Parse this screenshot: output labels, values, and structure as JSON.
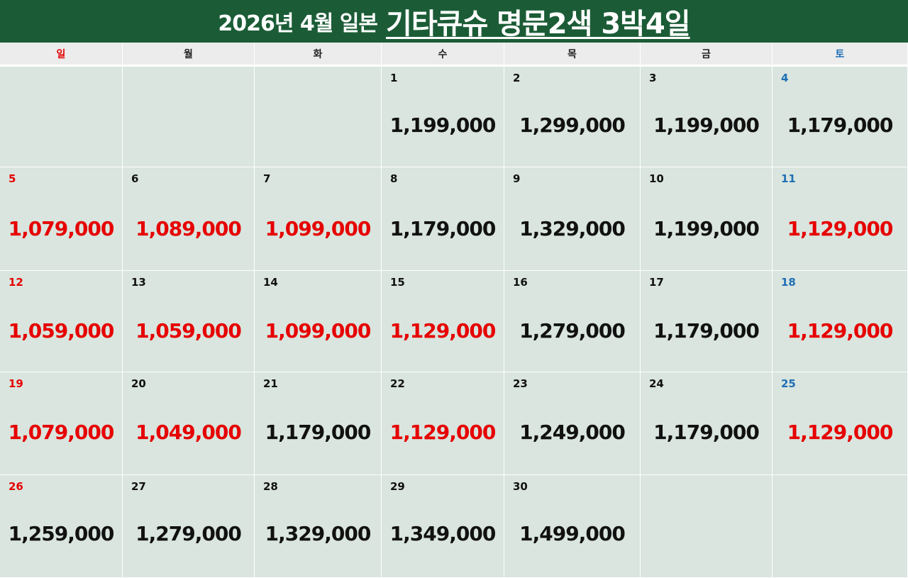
{
  "title": {
    "prefix": "2026년 4월 일본",
    "main": "기타큐슈 명문2색 3박4일"
  },
  "colors": {
    "header_bg": "#1b5c36",
    "cell_bg": "#d9e5de",
    "red": "#e60000",
    "blue": "#1f6fb5"
  },
  "weekdays": [
    {
      "label": "일",
      "color": "red"
    },
    {
      "label": "월",
      "color": "black"
    },
    {
      "label": "화",
      "color": "black"
    },
    {
      "label": "수",
      "color": "black"
    },
    {
      "label": "목",
      "color": "black"
    },
    {
      "label": "금",
      "color": "black"
    },
    {
      "label": "토",
      "color": "blue"
    }
  ],
  "weeks": [
    [
      null,
      null,
      null,
      {
        "day": "1",
        "price": "1,199,000",
        "highlight": false
      },
      {
        "day": "2",
        "price": "1,299,000",
        "highlight": false
      },
      {
        "day": "3",
        "price": "1,199,000",
        "highlight": false
      },
      {
        "day": "4",
        "price": "1,179,000",
        "highlight": false
      }
    ],
    [
      {
        "day": "5",
        "price": "1,079,000",
        "highlight": true
      },
      {
        "day": "6",
        "price": "1,089,000",
        "highlight": true
      },
      {
        "day": "7",
        "price": "1,099,000",
        "highlight": true
      },
      {
        "day": "8",
        "price": "1,179,000",
        "highlight": false
      },
      {
        "day": "9",
        "price": "1,329,000",
        "highlight": false
      },
      {
        "day": "10",
        "price": "1,199,000",
        "highlight": false
      },
      {
        "day": "11",
        "price": "1,129,000",
        "highlight": true
      }
    ],
    [
      {
        "day": "12",
        "price": "1,059,000",
        "highlight": true
      },
      {
        "day": "13",
        "price": "1,059,000",
        "highlight": true
      },
      {
        "day": "14",
        "price": "1,099,000",
        "highlight": true
      },
      {
        "day": "15",
        "price": "1,129,000",
        "highlight": true
      },
      {
        "day": "16",
        "price": "1,279,000",
        "highlight": false
      },
      {
        "day": "17",
        "price": "1,179,000",
        "highlight": false
      },
      {
        "day": "18",
        "price": "1,129,000",
        "highlight": true
      }
    ],
    [
      {
        "day": "19",
        "price": "1,079,000",
        "highlight": true
      },
      {
        "day": "20",
        "price": "1,049,000",
        "highlight": true
      },
      {
        "day": "21",
        "price": "1,179,000",
        "highlight": false
      },
      {
        "day": "22",
        "price": "1,129,000",
        "highlight": true
      },
      {
        "day": "23",
        "price": "1,249,000",
        "highlight": false
      },
      {
        "day": "24",
        "price": "1,179,000",
        "highlight": false
      },
      {
        "day": "25",
        "price": "1,129,000",
        "highlight": true
      }
    ],
    [
      {
        "day": "26",
        "price": "1,259,000",
        "highlight": false
      },
      {
        "day": "27",
        "price": "1,279,000",
        "highlight": false
      },
      {
        "day": "28",
        "price": "1,329,000",
        "highlight": false
      },
      {
        "day": "29",
        "price": "1,349,000",
        "highlight": false
      },
      {
        "day": "30",
        "price": "1,499,000",
        "highlight": false
      },
      null,
      null
    ]
  ]
}
